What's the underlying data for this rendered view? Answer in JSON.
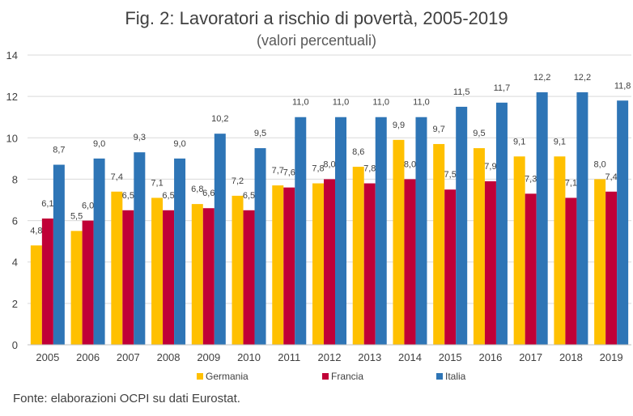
{
  "title": "Fig. 2: Lavoratori a rischio di povertà, 2005-2019",
  "subtitle": "(valori percentuali)",
  "source": "Fonte: elaborazioni OCPI su dati Eurostat.",
  "colors": {
    "Germania": "#ffc000",
    "Francia": "#c00037",
    "Italia": "#2e75b6"
  },
  "chart_data": {
    "type": "bar",
    "categories": [
      "2005",
      "2006",
      "2007",
      "2008",
      "2009",
      "2010",
      "2011",
      "2012",
      "2013",
      "2014",
      "2015",
      "2016",
      "2017",
      "2018",
      "2019"
    ],
    "series": [
      {
        "name": "Germania",
        "values": [
          4.8,
          5.5,
          7.4,
          7.1,
          6.8,
          7.2,
          7.7,
          7.8,
          8.6,
          9.9,
          9.7,
          9.5,
          9.1,
          9.1,
          8.0
        ],
        "labels": [
          "4,8",
          "5,5",
          "7,4",
          "7,1",
          "6,8",
          "7,2",
          "7,7",
          "7,8",
          "8,6",
          "9,9",
          "9,7",
          "9,5",
          "9,1",
          "9,1",
          "8,0"
        ]
      },
      {
        "name": "Francia",
        "values": [
          6.1,
          6.0,
          6.5,
          6.5,
          6.6,
          6.5,
          7.6,
          8.0,
          7.8,
          8.0,
          7.5,
          7.9,
          7.3,
          7.1,
          7.4
        ],
        "labels": [
          "6,1",
          "6,0",
          "6,5",
          "6,5",
          "6,6",
          "6,5",
          "7,6",
          "8,0",
          "7,8",
          "8,0",
          "7,5",
          "7,9",
          "7,3",
          "7,1",
          "7,4"
        ]
      },
      {
        "name": "Italia",
        "values": [
          8.7,
          9.0,
          9.3,
          9.0,
          10.2,
          9.5,
          11.0,
          11.0,
          11.0,
          11.0,
          11.5,
          11.7,
          12.2,
          12.2,
          11.8
        ],
        "labels": [
          "8,7",
          "9,0",
          "9,3",
          "9,0",
          "10,2",
          "9,5",
          "11,0",
          "11,0",
          "11,0",
          "11,0",
          "11,5",
          "11,7",
          "12,2",
          "12,2",
          "11,8"
        ]
      }
    ],
    "y_ticks": [
      "0",
      "2",
      "4",
      "6",
      "8",
      "10",
      "12",
      "14"
    ],
    "ylim": [
      0,
      14
    ],
    "grid": true,
    "legend": "bottom"
  }
}
